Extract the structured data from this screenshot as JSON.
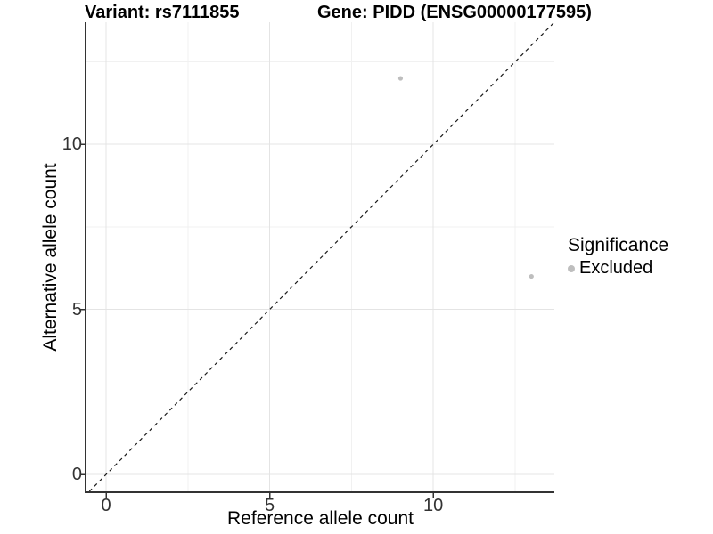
{
  "header": {
    "title_left": "Variant: rs7111855",
    "title_right": "Gene: PIDD (ENSG00000177595)"
  },
  "colors": {
    "point": "#bebebe",
    "grid_major": "#e4e4e4",
    "grid_minor": "#f1f1f1",
    "axis_line": "#333333",
    "tick_mark": "#333333",
    "identity_line": "#1a1a1a",
    "tick_label": "#333333"
  },
  "chart_data": {
    "type": "scatter",
    "title": "Variant: rs7111855    Gene: PIDD (ENSG00000177595)",
    "xlabel": "Reference allele count",
    "ylabel": "Alternative allele count",
    "xlim": [
      -0.6,
      13.7
    ],
    "ylim": [
      -0.51,
      13.7
    ],
    "x_major_ticks": [
      0,
      5,
      10
    ],
    "y_major_ticks": [
      0,
      5,
      10
    ],
    "x_minor_ticks": [
      2.5,
      7.5,
      12.5
    ],
    "y_minor_ticks": [
      2.5,
      7.5,
      12.5
    ],
    "grid": "major and minor, light gray on white",
    "identity_line": {
      "equation": "y = x",
      "style": "dashed",
      "color": "#1a1a1a"
    },
    "series": [
      {
        "name": "Excluded",
        "color": "#bebebe",
        "point_radius_px": 2.6,
        "points": [
          {
            "x": 9,
            "y": 12
          },
          {
            "x": 13,
            "y": 6
          }
        ]
      }
    ],
    "legend": {
      "title": "Significance",
      "position": "right",
      "items": [
        {
          "label": "Excluded",
          "color": "#bebebe"
        }
      ]
    }
  }
}
